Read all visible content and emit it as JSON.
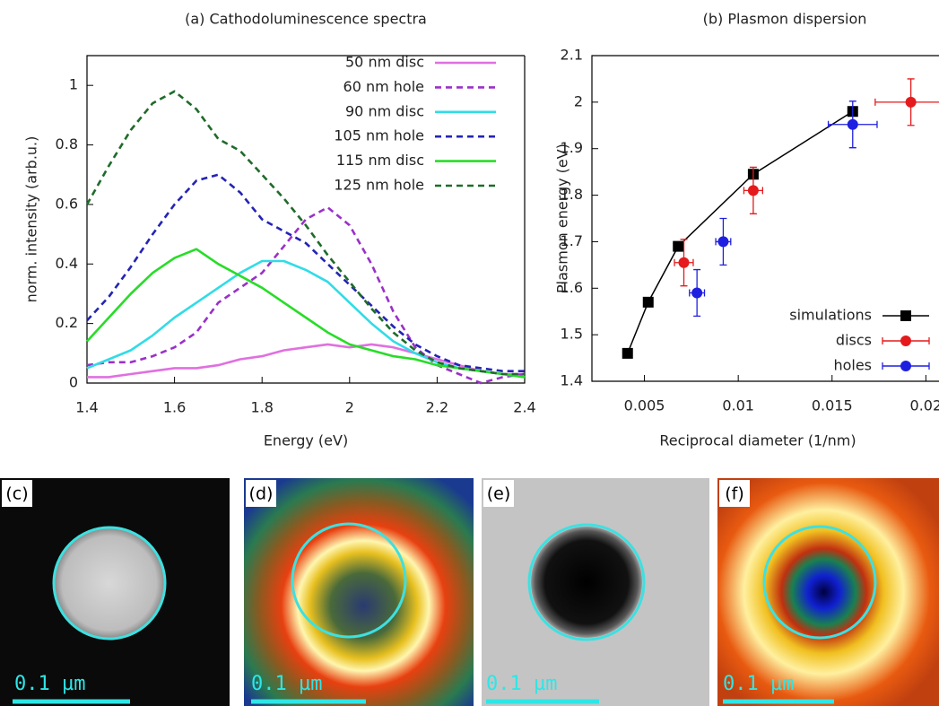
{
  "chart_data": [
    {
      "type": "line",
      "title": "(a) Cathodoluminescence spectra",
      "xlabel": "Energy (eV)",
      "ylabel": "norm. intensity (arb.u.)",
      "x": [
        1.4,
        1.45,
        1.5,
        1.55,
        1.6,
        1.65,
        1.7,
        1.75,
        1.8,
        1.85,
        1.9,
        1.95,
        2.0,
        2.05,
        2.1,
        2.15,
        2.2,
        2.25,
        2.3,
        2.35,
        2.4
      ],
      "series": [
        {
          "name": "50 nm disc",
          "color": "#e070e0",
          "dashed": false,
          "values": [
            0.02,
            0.02,
            0.03,
            0.04,
            0.05,
            0.05,
            0.06,
            0.08,
            0.09,
            0.11,
            0.12,
            0.13,
            0.12,
            0.13,
            0.12,
            0.1,
            0.08,
            0.06,
            0.04,
            0.03,
            0.03
          ]
        },
        {
          "name": "60 nm hole",
          "color": "#9b30c8",
          "dashed": true,
          "values": [
            0.06,
            0.07,
            0.07,
            0.09,
            0.12,
            0.17,
            0.27,
            0.32,
            0.37,
            0.46,
            0.55,
            0.59,
            0.53,
            0.4,
            0.24,
            0.12,
            0.06,
            0.03,
            0,
            0.02,
            0.03
          ]
        },
        {
          "name": "90 nm disc",
          "color": "#30dce6",
          "dashed": false,
          "values": [
            0.05,
            0.08,
            0.11,
            0.16,
            0.22,
            0.27,
            0.32,
            0.37,
            0.41,
            0.41,
            0.38,
            0.34,
            0.27,
            0.2,
            0.14,
            0.1,
            0.07,
            0.05,
            0.04,
            0.03,
            0.02
          ]
        },
        {
          "name": "105 nm hole",
          "color": "#2424b4",
          "dashed": true,
          "values": [
            0.21,
            0.29,
            0.39,
            0.5,
            0.6,
            0.68,
            0.7,
            0.64,
            0.55,
            0.51,
            0.47,
            0.4,
            0.33,
            0.26,
            0.19,
            0.13,
            0.09,
            0.06,
            0.05,
            0.04,
            0.04
          ]
        },
        {
          "name": "115 nm disc",
          "color": "#28dc28",
          "dashed": false,
          "values": [
            0.14,
            0.22,
            0.3,
            0.37,
            0.42,
            0.45,
            0.4,
            0.36,
            0.32,
            0.27,
            0.22,
            0.17,
            0.13,
            0.11,
            0.09,
            0.08,
            0.06,
            0.05,
            0.04,
            0.03,
            0.02
          ]
        },
        {
          "name": "125 nm hole",
          "color": "#1f6b2a",
          "dashed": true,
          "values": [
            0.6,
            0.73,
            0.85,
            0.94,
            0.98,
            0.92,
            0.82,
            0.78,
            0.7,
            0.62,
            0.53,
            0.43,
            0.34,
            0.25,
            0.17,
            0.11,
            0.07,
            0.05,
            0.04,
            0.03,
            0.03
          ]
        }
      ],
      "xlim": [
        1.4,
        2.4
      ],
      "xticks": [
        1.4,
        1.6,
        1.8,
        2,
        2.2,
        2.4
      ],
      "ylim": [
        0,
        1.1
      ],
      "yticks": [
        0,
        0.2,
        0.4,
        0.6,
        0.8,
        1
      ],
      "legend": "top right"
    },
    {
      "type": "scatter",
      "title": "(b) Plasmon dispersion",
      "xlabel": "Reciprocal diameter (1/nm)",
      "ylabel": "Plasmon energy (eV)",
      "series": [
        {
          "name": "simulations",
          "color": "#000000",
          "marker": "square",
          "line": true,
          "x": [
            0.0041,
            0.0052,
            0.0068,
            0.0108,
            0.0161
          ],
          "values": [
            1.46,
            1.57,
            1.69,
            1.845,
            1.98
          ]
        },
        {
          "name": "discs",
          "color": "#e41a1c",
          "marker": "circle",
          "line": false,
          "x": [
            0.0071,
            0.0108,
            0.0192
          ],
          "values": [
            1.655,
            1.81,
            2.0
          ],
          "errors": [
            0.05,
            0.05,
            0.05
          ],
          "xerrors": [
            0.0005,
            0.0005,
            0.0019
          ]
        },
        {
          "name": "holes",
          "color": "#1f1fe0",
          "marker": "circle",
          "line": false,
          "x": [
            0.0078,
            0.0092,
            0.0161
          ],
          "values": [
            1.59,
            1.7,
            1.952
          ],
          "errors": [
            0.05,
            0.05,
            0.05
          ],
          "xerrors": [
            0.0004,
            0.0004,
            0.0013
          ]
        }
      ],
      "xlim": [
        0.0022,
        0.0207
      ],
      "xticks": [
        0.005,
        0.01,
        0.015,
        0.02
      ],
      "ylim": [
        1.4,
        2.1
      ],
      "yticks": [
        1.4,
        1.5,
        1.6,
        1.7,
        1.8,
        1.9,
        2,
        2.1
      ],
      "legend": "bottom right"
    }
  ],
  "panels": [
    {
      "label": "(c)",
      "scale_bar": "0.1 µm"
    },
    {
      "label": "(d)",
      "scale_bar": "0.1 µm"
    },
    {
      "label": "(e)",
      "scale_bar": "0.1 µm"
    },
    {
      "label": "(f)",
      "scale_bar": "0.1 µm"
    }
  ]
}
